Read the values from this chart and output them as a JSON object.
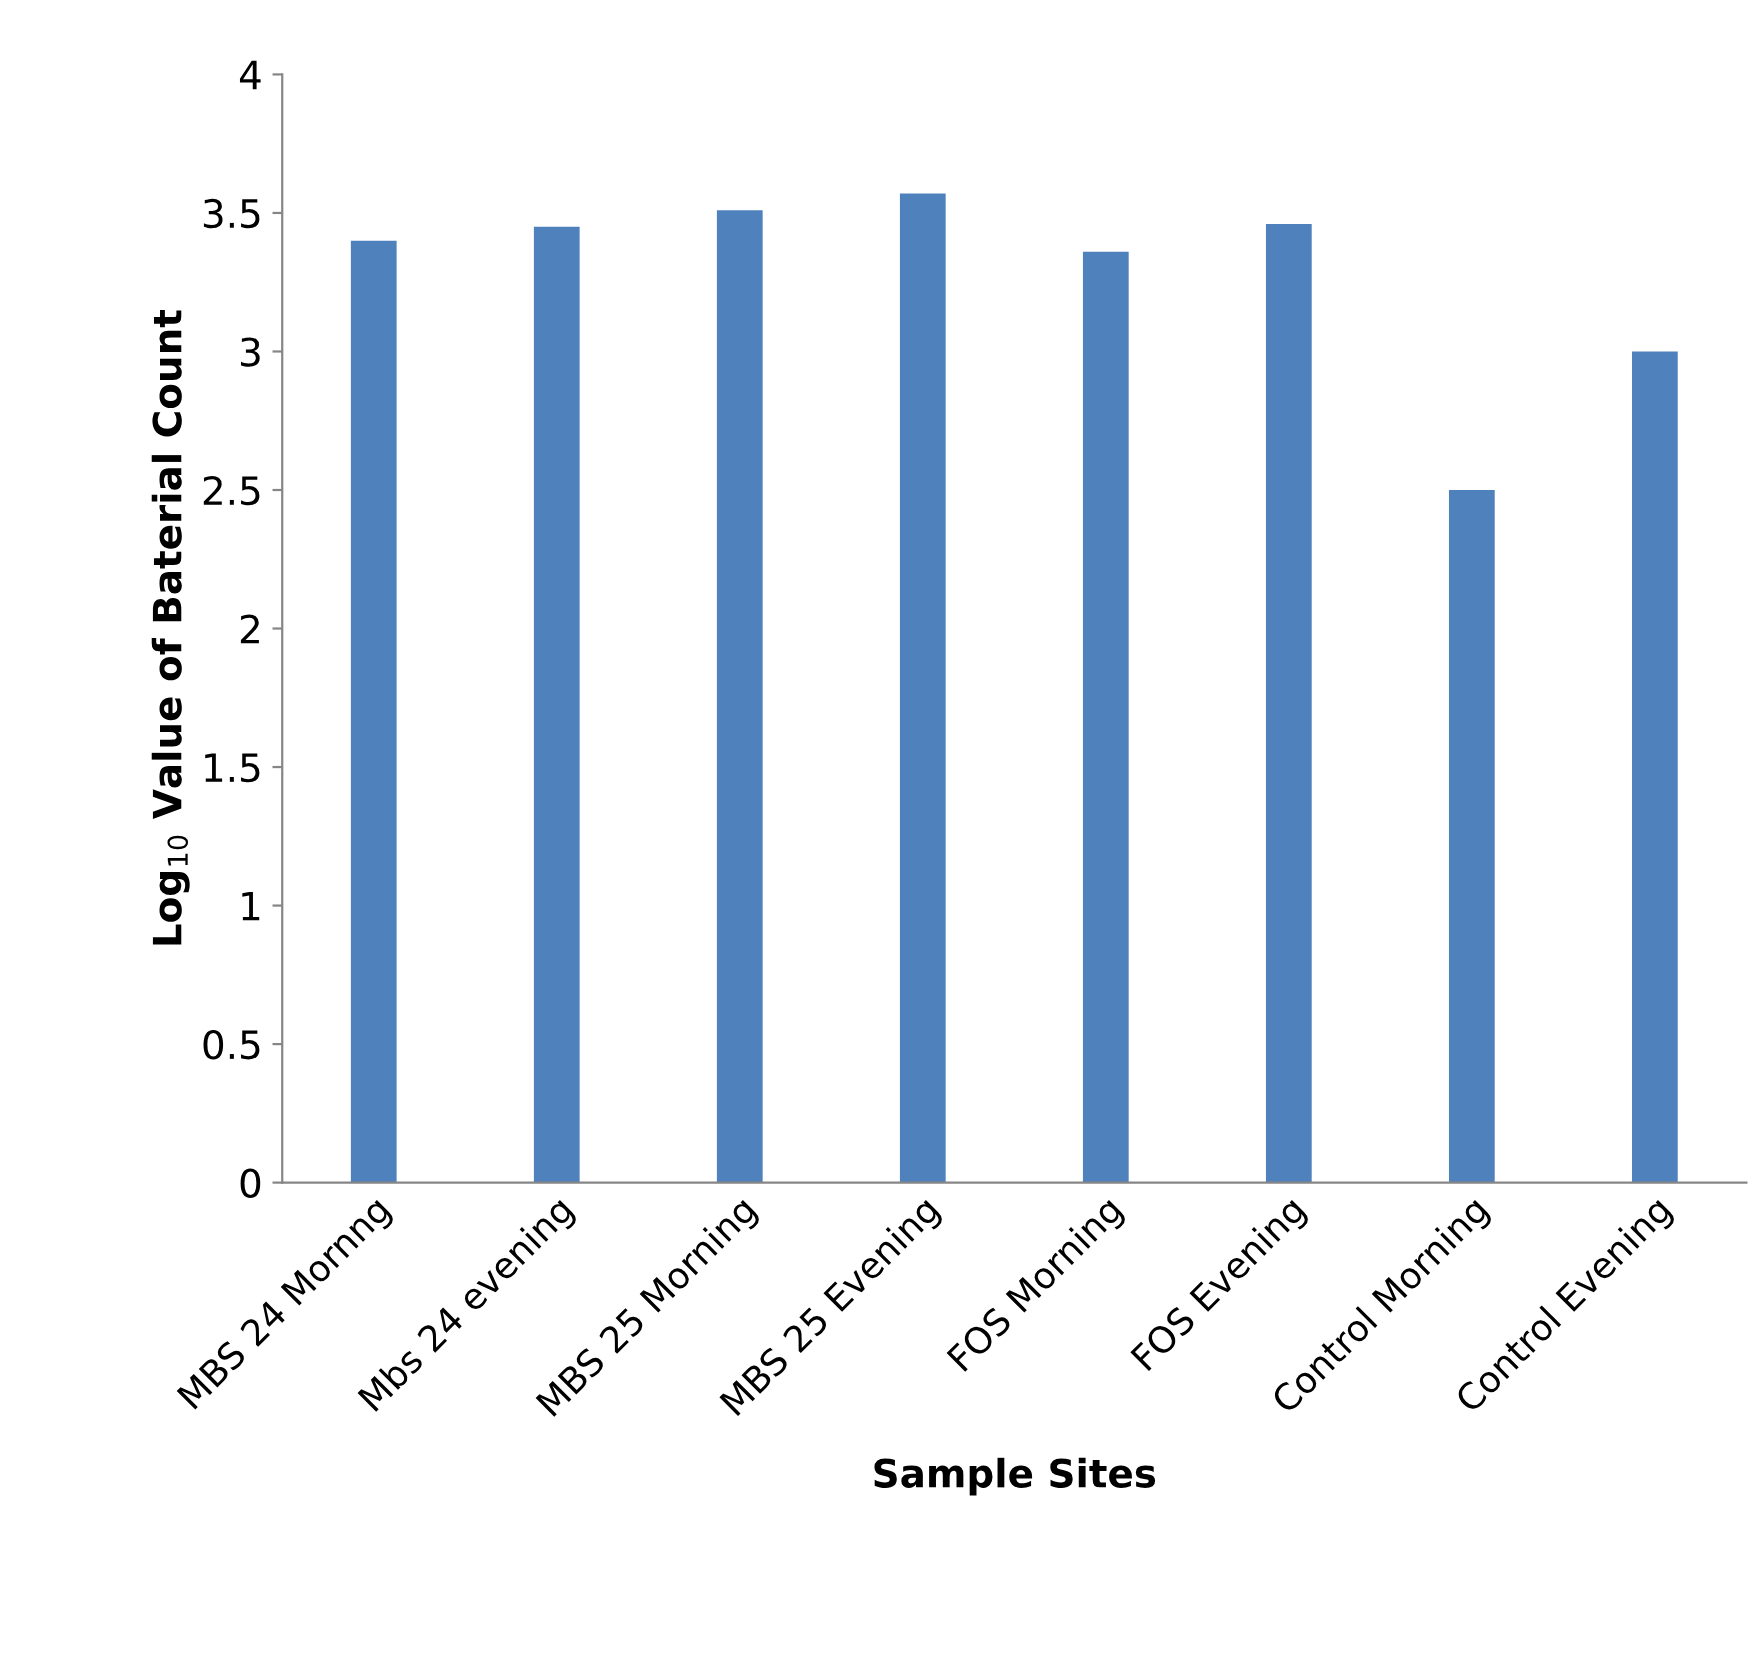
{
  "chart_data": {
    "type": "bar",
    "xlabel": "Sample Sites",
    "ylabel": "Log$_{10}$ Value of Baterial Count",
    "categories": [
      "MBS 24 Mornng",
      "Mbs 24 evening",
      "MBS 25 Morning",
      "MBS 25 Evening",
      "FOS Morning",
      "FOS Evening",
      "Control Morning",
      "Control Evening"
    ],
    "values": [
      3.4,
      3.45,
      3.51,
      3.57,
      3.36,
      3.46,
      2.5,
      3.0
    ],
    "color": "#4f81bd",
    "ylim": [
      0,
      4
    ],
    "yticks": [
      0,
      0.5,
      1,
      1.5,
      2,
      2.5,
      3,
      3.5,
      4
    ],
    "grid": false,
    "legend": false
  }
}
